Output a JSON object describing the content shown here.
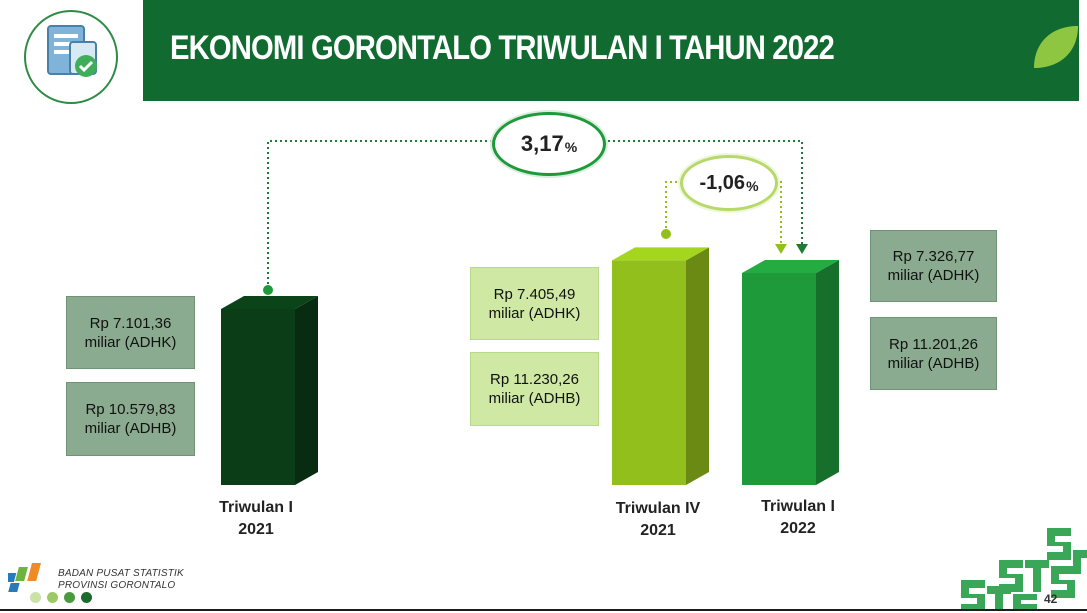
{
  "title": "EKONOMI GORONTALO TRIWULAN I TAHUN 2022",
  "chart_data": {
    "type": "bar",
    "categories": [
      "Triwulan I 2021",
      "Triwulan IV 2021",
      "Triwulan I 2022"
    ],
    "values": [
      7101.36,
      7405.49,
      7326.77
    ],
    "adhb_values": [
      10579.83,
      11230.26,
      11201.26
    ],
    "bar_colors": [
      "#0b3d17",
      "#93bf1c",
      "#1e9a3a"
    ],
    "growth_yoy": "3,17",
    "growth_qtq": "-1,06",
    "title": "EKONOMI GORONTALO TRIWULAN I TAHUN 2022"
  },
  "bars": [
    {
      "label_line1": "Triwulan I",
      "label_line2": "2021",
      "adhk_line1": "Rp 7.101,36",
      "adhk_line2": "miliar (ADHK)",
      "adhb_line1": "Rp 10.579,83",
      "adhb_line2": "miliar (ADHB)"
    },
    {
      "label_line1": "Triwulan IV",
      "label_line2": "2021",
      "adhk_line1": "Rp 7.405,49",
      "adhk_line2": "miliar (ADHK)",
      "adhb_line1": "Rp 11.230,26",
      "adhb_line2": "miliar (ADHB)"
    },
    {
      "label_line1": "Triwulan I",
      "label_line2": "2022",
      "adhk_line1": "Rp 7.326,77",
      "adhk_line2": "miliar (ADHK)",
      "adhb_line1": "Rp 11.201,26",
      "adhb_line2": "miliar (ADHB)"
    }
  ],
  "growth": {
    "yoy_value": "3,17",
    "qtq_value": "-1,06",
    "percent_sign": "%"
  },
  "footer": {
    "org_line1": "BADAN PUSAT STATISTIK",
    "org_line2": "PROVINSI GORONTALO",
    "page_number": "42"
  },
  "colors": {
    "header_green": "#116b30",
    "bar_dark": "#0b3d17",
    "bar_lime": "#93bf1c",
    "bar_green": "#1e9a3a",
    "box_dark": "#8aab8f",
    "box_light": "#cfe9a5"
  },
  "icons": {
    "logo": "document-check-icon",
    "leaf": "leaf-icon",
    "bps": "bps-logo-icon",
    "corner": "bps-pattern-icon"
  }
}
